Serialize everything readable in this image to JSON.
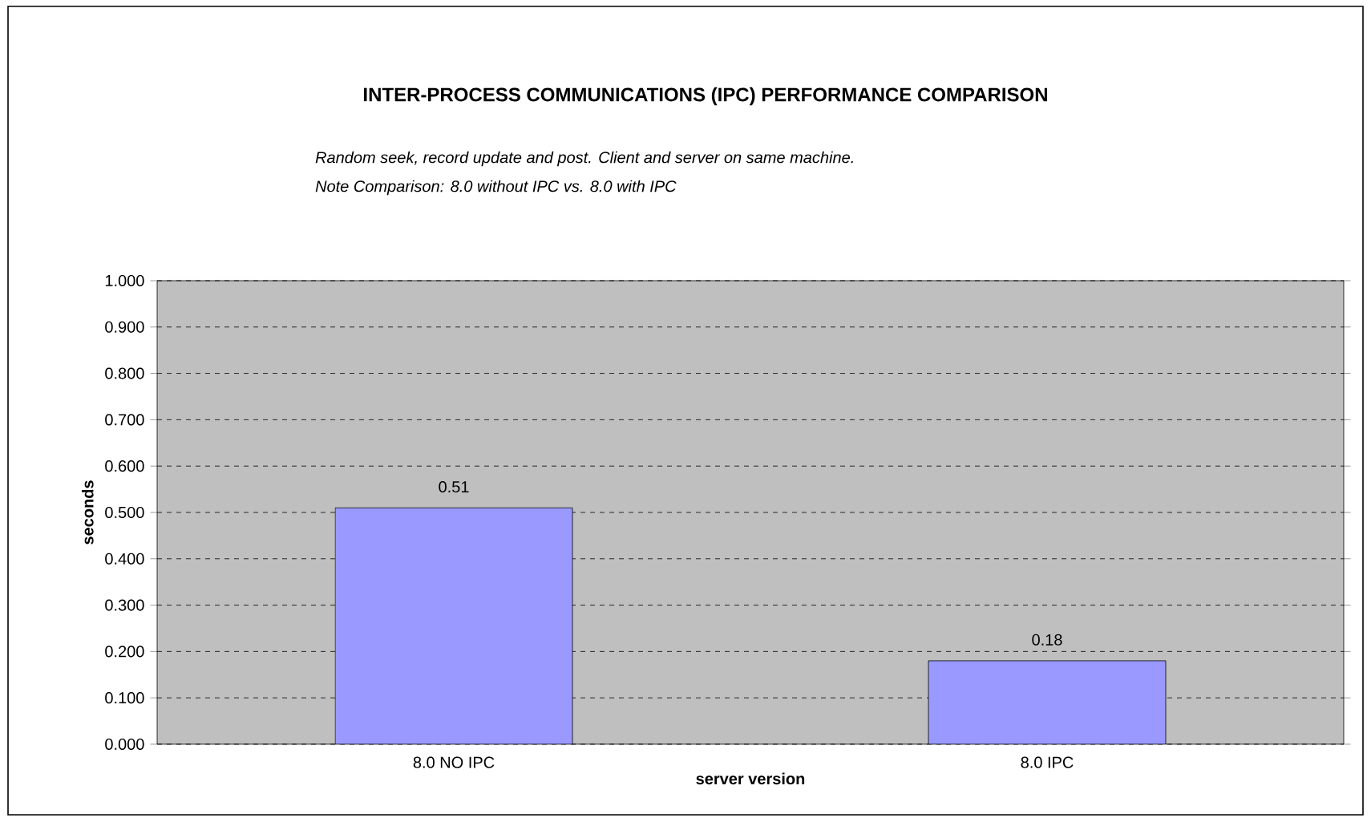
{
  "chart_data": {
    "type": "bar",
    "title": "INTER-PROCESS COMMUNICATIONS (IPC) PERFORMANCE COMPARISON",
    "subtitle": "Random seek, record update and post.  Client and server on same machine.",
    "annotations": [
      "Note Comparison: 8.0 without IPC vs. 8.0 with IPC"
    ],
    "xlabel": "server version",
    "ylabel": "seconds",
    "categories": [
      "8.0 NO IPC",
      "8.0 IPC"
    ],
    "values": [
      0.51,
      0.18
    ],
    "color": "#9999ff",
    "ylim": [
      0,
      1
    ],
    "yticks": [
      {
        "value": 0,
        "label": "0.000"
      },
      {
        "value": 0.1,
        "label": "0.100"
      },
      {
        "value": 0.2,
        "label": "0.200"
      },
      {
        "value": 0.3,
        "label": "0.300"
      },
      {
        "value": 0.4,
        "label": "0.400"
      },
      {
        "value": 0.5,
        "label": "0.500"
      },
      {
        "value": 0.6,
        "label": "0.600"
      },
      {
        "value": 0.7,
        "label": "0.700"
      },
      {
        "value": 0.8,
        "label": "0.800"
      },
      {
        "value": 0.9,
        "label": "0.900"
      },
      {
        "value": 1,
        "label": "1.000"
      }
    ],
    "grid": "y",
    "data_labels": true
  }
}
